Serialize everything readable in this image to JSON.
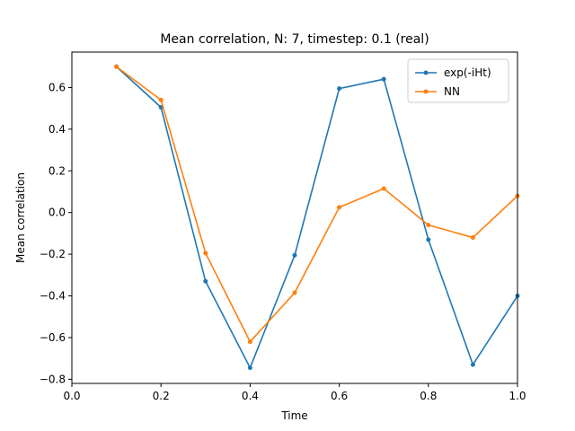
{
  "chart_data": {
    "type": "line",
    "title": "Mean correlation, N: 7, timestep: 0.1 (real)",
    "xlabel": "Time",
    "ylabel": "Mean correlation",
    "xlim": [
      0.0,
      1.0
    ],
    "ylim": [
      -0.82,
      0.77
    ],
    "xticks": [
      0.0,
      0.2,
      0.4,
      0.6,
      0.8,
      1.0
    ],
    "xtick_labels": [
      "0.0",
      "0.2",
      "0.4",
      "0.6",
      "0.8",
      "1.0"
    ],
    "yticks": [
      -0.8,
      -0.6,
      -0.4,
      -0.2,
      0.0,
      0.2,
      0.4,
      0.6
    ],
    "ytick_labels": [
      "−0.8",
      "−0.6",
      "−0.4",
      "−0.2",
      "0.0",
      "0.2",
      "0.4",
      "0.6"
    ],
    "grid": false,
    "legend_position": "top-right",
    "x": [
      0.1,
      0.2,
      0.3,
      0.4,
      0.5,
      0.6,
      0.7,
      0.8,
      0.9,
      1.0
    ],
    "series": [
      {
        "name": "exp(-iHt)",
        "color": "#1f77b4",
        "values": [
          0.7,
          0.505,
          -0.33,
          -0.745,
          -0.205,
          0.595,
          0.64,
          -0.13,
          -0.73,
          -0.4
        ]
      },
      {
        "name": "NN",
        "color": "#ff7f0e",
        "values": [
          0.7,
          0.54,
          -0.195,
          -0.62,
          -0.385,
          0.025,
          0.115,
          -0.06,
          -0.12,
          0.08
        ]
      }
    ]
  }
}
